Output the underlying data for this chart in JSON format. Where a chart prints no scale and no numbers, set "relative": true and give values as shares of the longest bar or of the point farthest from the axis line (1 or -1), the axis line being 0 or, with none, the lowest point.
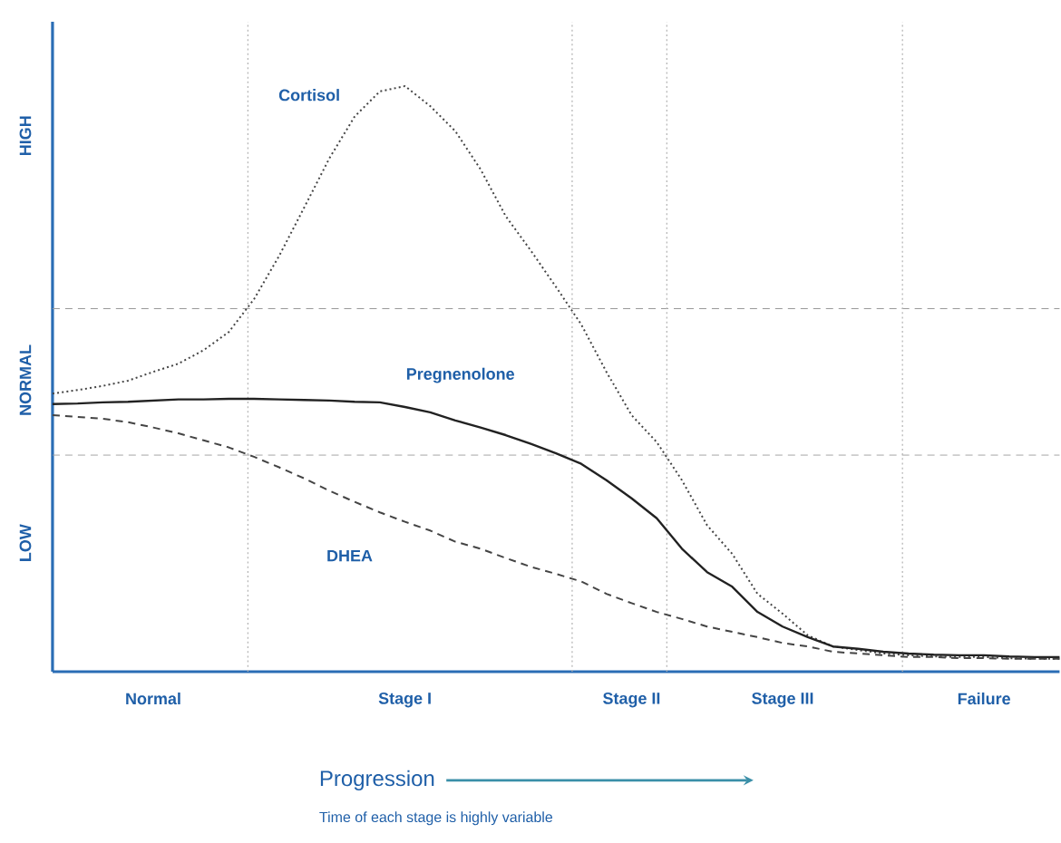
{
  "chart_data": {
    "type": "line",
    "relative": true,
    "categories": [
      null,
      null,
      null,
      null,
      "Normal",
      null,
      null,
      null,
      null,
      null,
      null,
      null,
      null,
      null,
      "Stage I",
      null,
      null,
      null,
      null,
      null,
      null,
      null,
      null,
      "Stage II",
      null,
      null,
      null,
      null,
      null,
      "Stage III",
      null,
      null,
      null,
      null,
      null,
      null,
      null,
      "Failure",
      null,
      null,
      null
    ],
    "ref_lines": [
      {
        "axis": "y",
        "value": 0.37,
        "color": "#999999",
        "line_style": "dashed"
      },
      {
        "axis": "y",
        "value": 0.62,
        "color": "#999999",
        "line_style": "dashed"
      }
    ],
    "annotations": [
      "LOW",
      "NORMAL",
      "HIGH",
      "Progression",
      "Time of each stage is highly variable"
    ],
    "series": [
      {
        "name": "Cortisol",
        "color": "#444444",
        "line_style": "dotted",
        "values": [
          0.475,
          0.481,
          0.488,
          0.497,
          0.512,
          0.526,
          0.549,
          0.58,
          0.636,
          0.71,
          0.793,
          0.877,
          0.948,
          0.991,
          1,
          0.966,
          0.923,
          0.858,
          0.778,
          0.719,
          0.657,
          0.593,
          0.512,
          0.438,
          0.392,
          0.327,
          0.25,
          0.201,
          0.133,
          0.099,
          0.062,
          0.043,
          0.037,
          0.031,
          0.028,
          0.026,
          0.025,
          0.025,
          0.023,
          0.022,
          0.022
        ]
      },
      {
        "name": "Pregnenolone",
        "color": "#222222",
        "line_style": "solid",
        "values": [
          0.457,
          0.458,
          0.46,
          0.461,
          0.463,
          0.465,
          0.465,
          0.466,
          0.466,
          0.465,
          0.464,
          0.463,
          0.461,
          0.46,
          0.452,
          0.443,
          0.429,
          0.417,
          0.404,
          0.389,
          0.373,
          0.355,
          0.327,
          0.296,
          0.262,
          0.21,
          0.17,
          0.145,
          0.102,
          0.077,
          0.059,
          0.043,
          0.039,
          0.034,
          0.031,
          0.029,
          0.028,
          0.028,
          0.026,
          0.025,
          0.025
        ]
      },
      {
        "name": "DHEA",
        "color": "#444444",
        "line_style": "dashed",
        "values": [
          0.438,
          0.435,
          0.432,
          0.426,
          0.417,
          0.407,
          0.395,
          0.383,
          0.367,
          0.349,
          0.33,
          0.309,
          0.29,
          0.272,
          0.256,
          0.241,
          0.222,
          0.21,
          0.194,
          0.179,
          0.167,
          0.154,
          0.133,
          0.117,
          0.102,
          0.09,
          0.077,
          0.068,
          0.059,
          0.049,
          0.043,
          0.034,
          0.031,
          0.028,
          0.025,
          0.025,
          0.023,
          0.023,
          0.022,
          0.022,
          0.022
        ]
      }
    ]
  }
}
